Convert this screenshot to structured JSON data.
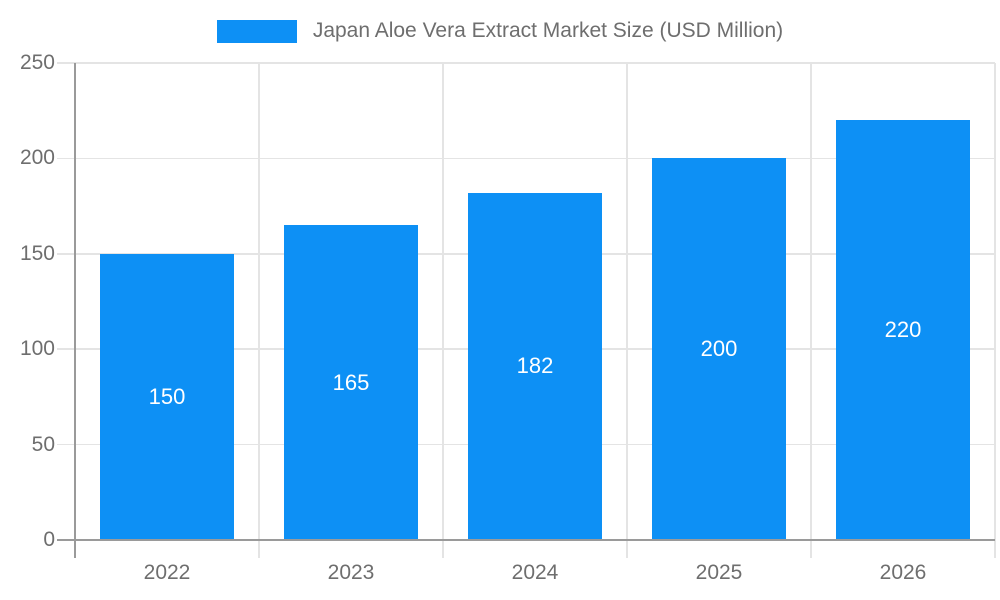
{
  "chart_data": {
    "type": "bar",
    "title": "Japan Aloe Vera Extract Market Size (USD Million)",
    "categories": [
      "2022",
      "2023",
      "2024",
      "2025",
      "2026"
    ],
    "values": [
      150,
      165,
      182,
      200,
      220
    ],
    "data_labels_inside_bars": true,
    "xlabel": "",
    "ylabel": "",
    "ylim": [
      0,
      250
    ],
    "yticks": [
      0,
      50,
      100,
      150,
      200,
      250
    ],
    "grid": true,
    "legend_position": "top-center",
    "colors": {
      "bar": "#0D90F5",
      "value_label": "#FFFFFF",
      "axis_text": "#6E6E6E",
      "gridline": "#E4E4E4",
      "axis_line": "#9A9A9A",
      "background": "#FFFFFF"
    }
  }
}
